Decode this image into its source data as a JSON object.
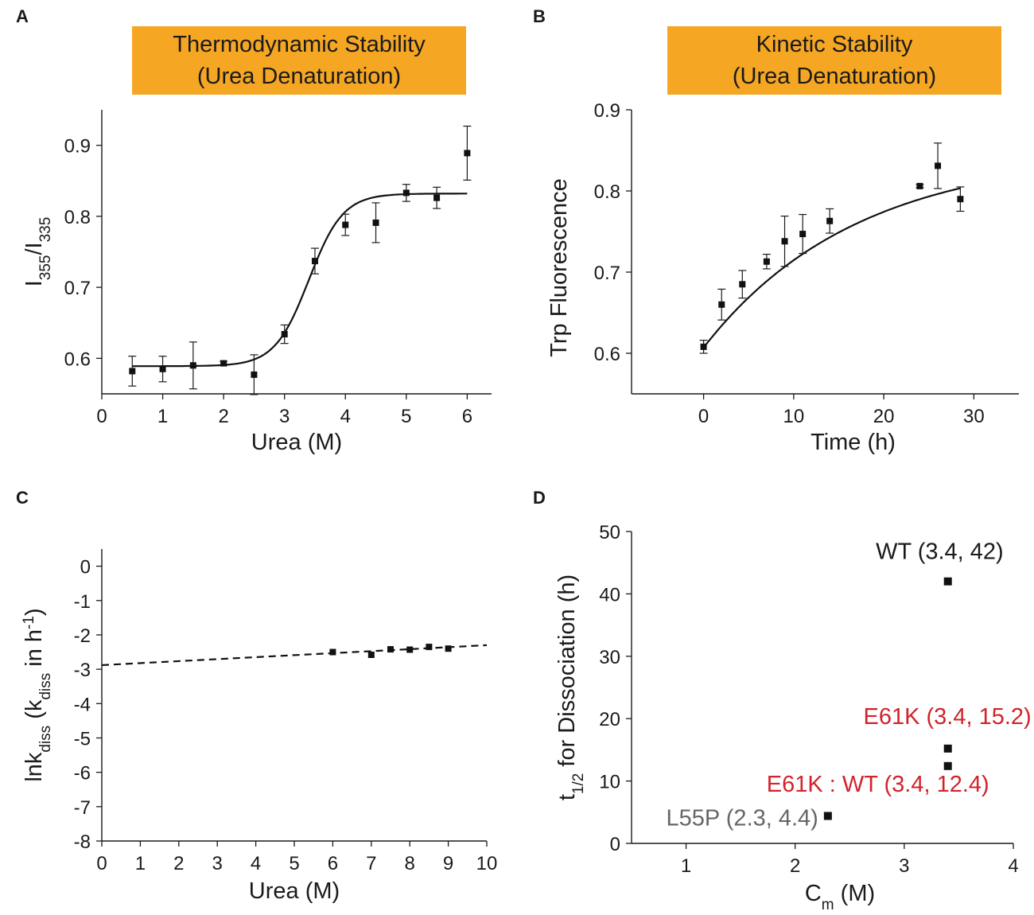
{
  "chart_data": [
    {
      "panel": "A",
      "type": "scatter",
      "banner": [
        "Thermodynamic Stability",
        "(Urea Denaturation)"
      ],
      "banner_color": "#F5A623",
      "xlabel": "Urea (M)",
      "ylabel_main": "I",
      "ylabel_sub1": "355",
      "ylabel_sep": "/I",
      "ylabel_sub2": "335",
      "xlim": [
        0,
        6.4
      ],
      "ylim": [
        0.55,
        0.95
      ],
      "xticks": [
        0,
        1,
        2,
        3,
        4,
        5,
        6
      ],
      "yticks": [
        0.6,
        0.7,
        0.8,
        0.9
      ],
      "x": [
        0.5,
        1.0,
        1.5,
        2.0,
        2.5,
        3.0,
        3.5,
        4.0,
        4.5,
        5.0,
        5.5,
        6.0
      ],
      "y": [
        0.582,
        0.585,
        0.59,
        0.593,
        0.577,
        0.634,
        0.737,
        0.788,
        0.791,
        0.833,
        0.826,
        0.889
      ],
      "err": [
        0.021,
        0.018,
        0.033,
        0.003,
        0.028,
        0.013,
        0.018,
        0.015,
        0.028,
        0.012,
        0.015,
        0.038
      ],
      "fit": {
        "model": "sigmoid",
        "bottom": 0.589,
        "top": 0.832,
        "midpoint": 3.4,
        "slope": 0.28,
        "x_range": [
          0.5,
          6.0
        ]
      }
    },
    {
      "panel": "B",
      "type": "scatter",
      "banner": [
        "Kinetic Stability",
        "(Urea Denaturation)"
      ],
      "banner_color": "#F5A623",
      "xlabel": "Time (h)",
      "ylabel": "Trp Fluorescence",
      "xlim": [
        -8,
        35
      ],
      "ylim": [
        0.55,
        0.9
      ],
      "xticks": [
        0,
        10,
        20,
        30
      ],
      "yticks": [
        0.6,
        0.7,
        0.8,
        0.9
      ],
      "x": [
        0,
        2,
        4.3,
        7,
        9,
        11,
        14,
        24,
        26,
        28.5
      ],
      "y": [
        0.608,
        0.66,
        0.685,
        0.713,
        0.738,
        0.747,
        0.763,
        0.806,
        0.831,
        0.79
      ],
      "err": [
        0.008,
        0.019,
        0.017,
        0.009,
        0.031,
        0.024,
        0.015,
        0.002,
        0.028,
        0.015
      ],
      "fit": {
        "model": "exponential",
        "y0": 0.607,
        "plateau": 0.848,
        "k": 0.0592,
        "x_range": [
          0,
          28.5
        ]
      }
    },
    {
      "panel": "C",
      "type": "scatter",
      "xlabel": "Urea (M)",
      "ylabel_main": "lnk",
      "ylabel_sub1": "diss",
      "ylabel_mid": " (k",
      "ylabel_sub2": "diss",
      "ylabel_tail": " in h",
      "ylabel_sup": "-1",
      "ylabel_close": ")",
      "xlim": [
        0,
        10
      ],
      "ylim": [
        -8,
        0.5
      ],
      "xticks": [
        0,
        1,
        2,
        3,
        4,
        5,
        6,
        7,
        8,
        9,
        10
      ],
      "yticks": [
        0,
        -1,
        -2,
        -3,
        -4,
        -5,
        -6,
        -7,
        -8
      ],
      "x": [
        6.0,
        7.0,
        7.5,
        8.0,
        8.5,
        9.0
      ],
      "y": [
        -2.5,
        -2.58,
        -2.42,
        -2.43,
        -2.35,
        -2.4
      ],
      "fit": {
        "model": "linear",
        "intercept": -2.88,
        "slope": 0.058,
        "x_range": [
          0,
          10
        ],
        "style": "dashed"
      }
    },
    {
      "panel": "D",
      "type": "scatter",
      "xlabel_main": "C",
      "xlabel_sub": "m",
      "xlabel_tail": " (M)",
      "ylabel_main": "t",
      "ylabel_sub": "1/2",
      "ylabel_tail": " for Dissociation (h)",
      "xlim": [
        0.5,
        4
      ],
      "ylim": [
        0,
        50
      ],
      "xticks": [
        1,
        2,
        3,
        4
      ],
      "yticks": [
        0,
        10,
        20,
        30,
        40,
        50
      ],
      "points": [
        {
          "x": 3.4,
          "y": 42,
          "label": "WT (3.4, 42)",
          "color": "#1a1a1a"
        },
        {
          "x": 3.4,
          "y": 15.2,
          "label": "E61K (3.4, 15.2)",
          "color": "#d2232a"
        },
        {
          "x": 3.4,
          "y": 12.4,
          "label": "E61K : WT (3.4, 12.4)",
          "color": "#d2232a"
        },
        {
          "x": 2.3,
          "y": 4.4,
          "label": "L55P (2.3, 4.4)",
          "color": "#666666"
        }
      ]
    }
  ],
  "panel_letters": [
    "A",
    "B",
    "C",
    "D"
  ]
}
